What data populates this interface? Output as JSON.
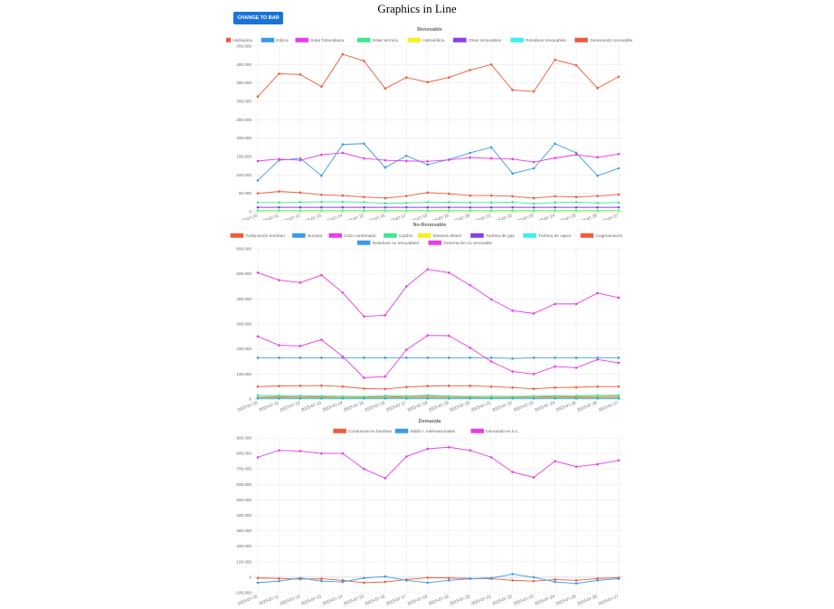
{
  "page": {
    "title": "Graphics in Line",
    "toggle_label": "CHANGE TO BAR"
  },
  "chart_data": [
    {
      "type": "line",
      "title": "Renovable",
      "legend_placement": "top",
      "grid": true,
      "ylim": [
        0,
        450000
      ],
      "yticks": [
        "0",
        "50.000",
        "100.000",
        "150.000",
        "200.000",
        "250.000",
        "300.000",
        "350.000",
        "400.000",
        "450.000"
      ],
      "x": [
        "2023-07-10",
        "2023-07-11",
        "2023-07-12",
        "2023-07-13",
        "2023-07-14",
        "2023-07-15",
        "2023-07-16",
        "2023-07-17",
        "2023-07-18",
        "2023-07-19",
        "2023-07-20",
        "2023-07-21",
        "2023-07-22",
        "2023-07-23",
        "2023-07-24",
        "2023-07-25",
        "2023-07-26",
        "2023-07-27"
      ],
      "series": [
        {
          "name": "Hidráulica",
          "color": "#f05a3c",
          "values": [
            50000,
            55000,
            52000,
            46000,
            44000,
            40000,
            37000,
            43000,
            52000,
            49000,
            44000,
            44000,
            42000,
            37000,
            42000,
            40000,
            43000,
            47000
          ]
        },
        {
          "name": "Eólica",
          "color": "#3b9ae8",
          "values": [
            85000,
            140000,
            145000,
            98000,
            183000,
            185000,
            120000,
            152000,
            128000,
            142000,
            160000,
            175000,
            104000,
            118000,
            185000,
            160000,
            98000,
            118000
          ]
        },
        {
          "name": "Solar fotovoltaica",
          "color": "#e83ce8",
          "values": [
            138000,
            143000,
            140000,
            155000,
            160000,
            145000,
            140000,
            138000,
            137000,
            141000,
            147000,
            145000,
            143000,
            135000,
            146000,
            155000,
            148000,
            157000
          ]
        },
        {
          "name": "Solar térmica",
          "color": "#3ce88f",
          "values": [
            25000,
            25000,
            26000,
            27000,
            27000,
            26000,
            23000,
            24000,
            26000,
            26000,
            25000,
            25000,
            26000,
            22000,
            25000,
            26000,
            24000,
            25000
          ]
        },
        {
          "name": "Hidroeólica",
          "color": "#f5f01e",
          "values": [
            400,
            400,
            400,
            400,
            400,
            400,
            400,
            400,
            400,
            400,
            400,
            400,
            400,
            400,
            400,
            400,
            400,
            400
          ]
        },
        {
          "name": "Otras renovables",
          "color": "#8a3ce8",
          "values": [
            12000,
            12000,
            12000,
            12000,
            12000,
            12000,
            12000,
            12000,
            12000,
            12000,
            12000,
            12000,
            12000,
            12000,
            12000,
            12000,
            12000,
            12000
          ]
        },
        {
          "name": "Residuos renovables",
          "color": "#3cf0f0",
          "values": [
            3500,
            3500,
            3500,
            3500,
            3500,
            3500,
            3500,
            3500,
            3500,
            3500,
            3500,
            3500,
            3500,
            3500,
            3500,
            3500,
            3500,
            3500
          ]
        },
        {
          "name": "Generación renovable",
          "color": "#f05a3c",
          "values": [
            313000,
            375000,
            373000,
            340000,
            428000,
            410000,
            335000,
            365000,
            352000,
            365000,
            385000,
            400000,
            331000,
            327000,
            413000,
            398000,
            336000,
            367000
          ]
        }
      ]
    },
    {
      "type": "line",
      "title": "No-Renovable",
      "legend_placement": "top",
      "grid": true,
      "ylim": [
        0,
        600000
      ],
      "yticks": [
        "0",
        "100.000",
        "200.000",
        "300.000",
        "400.000",
        "500.000",
        "600.000"
      ],
      "x": [
        "2023-07-10",
        "2023-07-11",
        "2023-07-12",
        "2023-07-13",
        "2023-07-14",
        "2023-07-15",
        "2023-07-16",
        "2023-07-17",
        "2023-07-18",
        "2023-07-19",
        "2023-07-20",
        "2023-07-21",
        "2023-07-22",
        "2023-07-23",
        "2023-07-24",
        "2023-07-25",
        "2023-07-26",
        "2023-07-27"
      ],
      "series": [
        {
          "name": "Turbinación bombeo",
          "color": "#f05a3c",
          "values": [
            8000,
            9000,
            8000,
            9000,
            10000,
            9000,
            8000,
            10000,
            11000,
            10000,
            9000,
            10000,
            9000,
            8000,
            10000,
            9000,
            10000,
            11000
          ]
        },
        {
          "name": "Nuclear",
          "color": "#3b9ae8",
          "values": [
            165000,
            165000,
            165000,
            165000,
            165000,
            165000,
            165000,
            165000,
            165000,
            165000,
            165000,
            165000,
            162000,
            165000,
            165000,
            165000,
            165000,
            165000
          ]
        },
        {
          "name": "Ciclo combinado",
          "color": "#e83ce8",
          "values": [
            250000,
            215000,
            212000,
            237000,
            170000,
            85000,
            90000,
            197000,
            254000,
            253000,
            205000,
            150000,
            110000,
            100000,
            130000,
            125000,
            158000,
            145000
          ]
        },
        {
          "name": "Carbón",
          "color": "#3ce88f",
          "values": [
            15000,
            14000,
            13000,
            12000,
            11000,
            10000,
            13000,
            12000,
            15000,
            12000,
            10000,
            11000,
            10000,
            12000,
            13000,
            14000,
            15000,
            15000
          ]
        },
        {
          "name": "Motores diésel",
          "color": "#f5f01e",
          "values": [
            6000,
            6000,
            6000,
            6000,
            6000,
            6000,
            6000,
            6000,
            6000,
            6000,
            6000,
            6000,
            6000,
            6000,
            6000,
            6000,
            6000,
            6000
          ]
        },
        {
          "name": "Turbina de gas",
          "color": "#8a3ce8",
          "values": [
            3000,
            3000,
            3000,
            3000,
            3000,
            3000,
            3000,
            3000,
            3000,
            3000,
            3000,
            3000,
            3000,
            3000,
            3000,
            3000,
            3000,
            3000
          ]
        },
        {
          "name": "Turbina de vapor",
          "color": "#3cf0f0",
          "values": [
            2000,
            2000,
            2000,
            2000,
            2000,
            2000,
            2000,
            2000,
            2000,
            2000,
            2000,
            2000,
            2000,
            2000,
            2000,
            2000,
            2000,
            2000
          ]
        },
        {
          "name": "Cogeneración",
          "color": "#f05a3c",
          "values": [
            50000,
            52000,
            53000,
            54000,
            50000,
            42000,
            40000,
            48000,
            52000,
            53000,
            53000,
            50000,
            46000,
            41000,
            46000,
            47000,
            50000,
            50000
          ]
        },
        {
          "name": "Residuos no renovables",
          "color": "#3b9ae8",
          "values": [
            4000,
            4000,
            4000,
            4000,
            4000,
            4000,
            4000,
            4000,
            4000,
            4000,
            4000,
            4000,
            4000,
            4000,
            4000,
            4000,
            4000,
            4000
          ]
        },
        {
          "name": "Generación no renovable",
          "color": "#e83ce8",
          "values": [
            505000,
            475000,
            465000,
            495000,
            425000,
            330000,
            335000,
            450000,
            518000,
            505000,
            455000,
            398000,
            353000,
            342000,
            380000,
            380000,
            423000,
            405000
          ]
        }
      ]
    },
    {
      "type": "line",
      "title": "Demanda",
      "legend_placement": "top",
      "grid": true,
      "ylim": [
        -100000,
        900000
      ],
      "yticks": [
        "-100.000",
        "0",
        "100.000",
        "200.000",
        "300.000",
        "400.000",
        "500.000",
        "600.000",
        "700.000",
        "800.000",
        "900.000"
      ],
      "x": [
        "2023-07-10",
        "2023-07-11",
        "2023-07-12",
        "2023-07-13",
        "2023-07-14",
        "2023-07-15",
        "2023-07-16",
        "2023-07-17",
        "2023-07-18",
        "2023-07-19",
        "2023-07-20",
        "2023-07-21",
        "2023-07-22",
        "2023-07-23",
        "2023-07-24",
        "2023-07-25",
        "2023-07-26",
        "2023-07-27"
      ],
      "series": [
        {
          "name": "Consumos en bombeo",
          "color": "#f05a3c",
          "values": [
            -5000,
            -8000,
            -12000,
            -10000,
            -20000,
            -35000,
            -30000,
            -15000,
            -3000,
            -5000,
            -8000,
            -10000,
            -20000,
            -25000,
            -15000,
            -20000,
            -8000,
            -3000
          ]
        },
        {
          "name": "Saldo I. internacionales",
          "color": "#3b9ae8",
          "values": [
            -35000,
            -25000,
            -5000,
            -25000,
            -30000,
            -5000,
            5000,
            -20000,
            -35000,
            -20000,
            -10000,
            -5000,
            20000,
            0,
            -30000,
            -40000,
            -20000,
            -10000
          ]
        },
        {
          "name": "Demanda en b.c.",
          "color": "#e83ce8",
          "values": [
            775000,
            820000,
            815000,
            800000,
            800000,
            700000,
            640000,
            780000,
            830000,
            840000,
            820000,
            775000,
            680000,
            645000,
            750000,
            715000,
            730000,
            755000
          ]
        }
      ]
    }
  ]
}
